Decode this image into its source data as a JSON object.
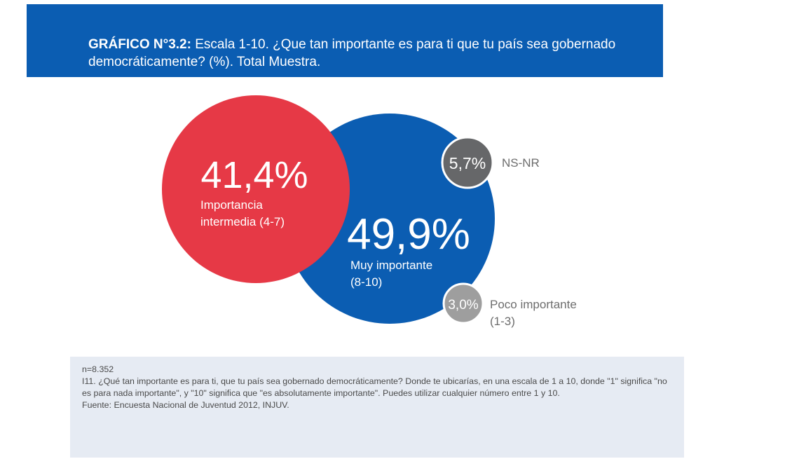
{
  "header": {
    "title_bold": "GRÁFICO N°3.2:",
    "title_rest": " Escala 1-10. ¿Que tan importante es para ti que tu país sea gobernado democráticamente? (%). Total Muestra."
  },
  "chart_data": {
    "type": "bubble",
    "title": "GRÁFICO N°3.2: Escala 1-10. ¿Que tan importante es para ti que tu país sea gobernado democráticamente? (%). Total Muestra.",
    "categories": [
      "Muy importante (8-10)",
      "Importancia intermedia (4-7)",
      "NS-NR",
      "Poco importante (1-3)"
    ],
    "values": [
      49.9,
      41.4,
      5.7,
      3.0
    ],
    "unit": "%",
    "items": [
      {
        "id": "muy",
        "value": 49.9,
        "label_value": "49,9%",
        "label_lines": [
          "Muy importante",
          "(8-10)"
        ],
        "color": "#0b5db2"
      },
      {
        "id": "intermedia",
        "value": 41.4,
        "label_value": "41,4%",
        "label_lines": [
          "Importancia",
          "intermedia (4-7)"
        ],
        "color": "#e63946"
      },
      {
        "id": "nsnr",
        "value": 5.7,
        "label_value": "5,7%",
        "label_lines": [
          "NS-NR"
        ],
        "color": "#666769"
      },
      {
        "id": "poco",
        "value": 3.0,
        "label_value": "3,0%",
        "label_lines": [
          "Poco importante",
          "(1-3)"
        ],
        "color": "#9e9e9e"
      }
    ]
  },
  "notes": {
    "n": "n=8.352",
    "question": "I11. ¿Qué tan importante es para ti, que tu país sea gobernado democráticamente? Donde te ubicarías, en una escala de 1 a 10, donde \"1\" significa \"no es para nada importante\", y \"10\" significa que \"es absolutamente importante\". Puedes utilizar cualquier número entre 1 y 10.",
    "source": "Fuente: Encuesta Nacional de Juventud 2012, INJUV."
  }
}
